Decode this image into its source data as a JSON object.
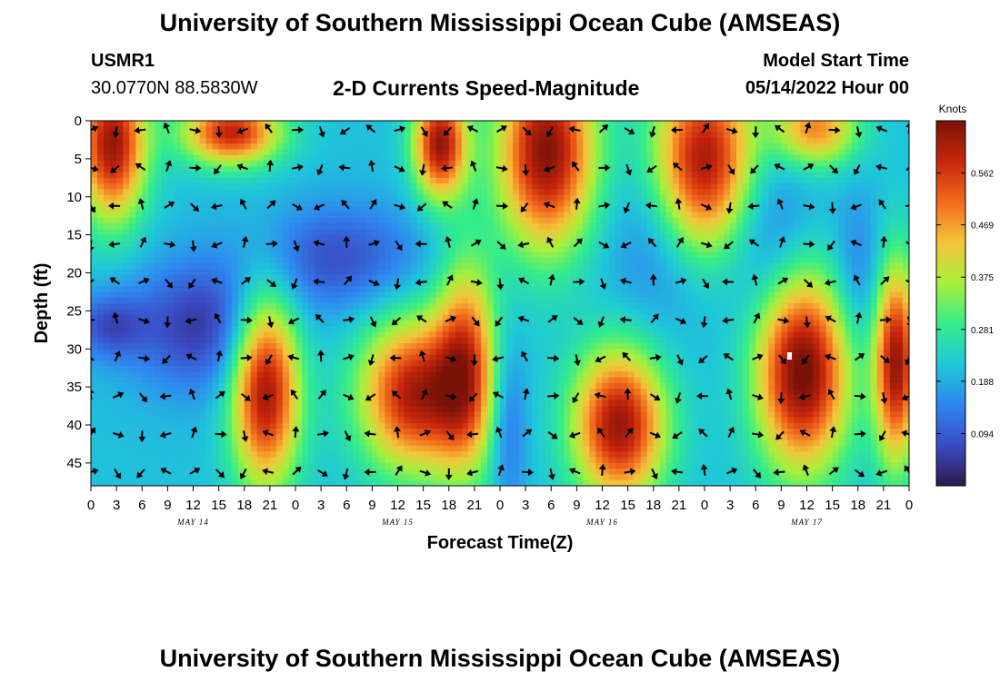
{
  "header": {
    "title": "University of Southern Mississippi Ocean Cube (AMSEAS)",
    "station": "USMR1",
    "coordinates": "30.0770N  88.5830W",
    "subtitle": "2-D Currents Speed-Magnitude",
    "model_start_label": "Model Start Time",
    "model_start_value": "05/14/2022 Hour 00"
  },
  "footer": {
    "title": "University of Southern Mississippi Ocean Cube (AMSEAS)"
  },
  "colors": {
    "colormap": [
      "#2b1b4d",
      "#3b4bc4",
      "#2f86f0",
      "#1fc8d8",
      "#35ec8a",
      "#a8f03c",
      "#f4c43a",
      "#f26a1c",
      "#c6260c",
      "#7a1208"
    ]
  },
  "chart_data": {
    "type": "heatmap",
    "xlabel": "Forecast Time(Z)",
    "ylabel": "Depth (ft)",
    "xlim": [
      0,
      96
    ],
    "ylim": [
      0,
      48
    ],
    "xtick_labels": [
      "0",
      "3",
      "6",
      "9",
      "12",
      "15",
      "18",
      "21",
      "0",
      "3",
      "6",
      "9",
      "12",
      "15",
      "18",
      "21",
      "0",
      "3",
      "6",
      "9",
      "12",
      "15",
      "18",
      "21",
      "0",
      "3",
      "6",
      "9",
      "12",
      "15",
      "18",
      "21",
      "0"
    ],
    "ytick_values": [
      0,
      5,
      10,
      15,
      20,
      25,
      30,
      35,
      40,
      45
    ],
    "ytick_labels": [
      "0",
      "5",
      "10",
      "15",
      "20",
      "25",
      "30",
      "35",
      "40",
      "45"
    ],
    "day_labels": [
      {
        "hour": 12,
        "text": "MAY 14"
      },
      {
        "hour": 36,
        "text": "MAY 15"
      },
      {
        "hour": 60,
        "text": "MAY 16"
      },
      {
        "hour": 84,
        "text": "MAY 17"
      }
    ],
    "colorbar": {
      "unit": "Knots",
      "min": 0,
      "max": 0.656,
      "tick_values": [
        0.094,
        0.188,
        0.281,
        0.375,
        0.469,
        0.562
      ],
      "tick_labels": [
        "0.094",
        "0.188",
        "0.281",
        "0.375",
        "0.469",
        "0.562"
      ]
    },
    "speed_field": {
      "base_knots": 0.21,
      "blobs_knots": [
        {
          "hour": 2.5,
          "depth": 3,
          "sh": 2.8,
          "sd": 7,
          "amp": 0.42
        },
        {
          "hour": 16.5,
          "depth": 1.5,
          "sh": 4,
          "sd": 3,
          "amp": 0.38
        },
        {
          "hour": 20.5,
          "depth": 35,
          "sh": 2.8,
          "sd": 9,
          "amp": 0.43
        },
        {
          "hour": 41,
          "depth": 3,
          "sh": 2.2,
          "sd": 5,
          "amp": 0.42
        },
        {
          "hour": 38,
          "depth": 36,
          "sh": 4.5,
          "sd": 7,
          "amp": 0.4
        },
        {
          "hour": 44,
          "depth": 32,
          "sh": 2.5,
          "sd": 10,
          "amp": 0.3
        },
        {
          "hour": 53.5,
          "depth": 4,
          "sh": 4,
          "sd": 9,
          "amp": 0.44
        },
        {
          "hour": 62,
          "depth": 40,
          "sh": 3.8,
          "sd": 7,
          "amp": 0.42
        },
        {
          "hour": 72,
          "depth": 6,
          "sh": 4.2,
          "sd": 9,
          "amp": 0.44
        },
        {
          "hour": 83.5,
          "depth": 33,
          "sh": 3.8,
          "sd": 9,
          "amp": 0.46
        },
        {
          "hour": 85,
          "depth": 1,
          "sh": 3.5,
          "sd": 3.5,
          "amp": 0.28
        },
        {
          "hour": 94.5,
          "depth": 32,
          "sh": 1.8,
          "sd": 9,
          "amp": 0.42
        },
        {
          "hour": 13,
          "depth": 27,
          "sh": 6,
          "sd": 6,
          "amp": -0.16
        },
        {
          "hour": 2,
          "depth": 27,
          "sh": 3,
          "sd": 3,
          "amp": -0.12
        },
        {
          "hour": 29,
          "depth": 18,
          "sh": 7,
          "sd": 5,
          "amp": -0.13
        },
        {
          "hour": 68,
          "depth": 16,
          "sh": 5,
          "sd": 8,
          "amp": -0.1
        },
        {
          "hour": 79,
          "depth": 14,
          "sh": 4,
          "sd": 8,
          "amp": -0.1
        },
        {
          "hour": 49,
          "depth": 40,
          "sh": 1.5,
          "sd": 8,
          "amp": -0.1
        },
        {
          "hour": 90,
          "depth": 20,
          "sh": 2,
          "sd": 7,
          "amp": -0.08
        }
      ]
    },
    "vector_grid": {
      "hours_start": 0,
      "hours_step": 3,
      "hours_count": 33,
      "depths": [
        0,
        5,
        10,
        15,
        20,
        25,
        30,
        35,
        40,
        45
      ],
      "rotation_hours": 12.4,
      "direction_depth_shift_deg": 36,
      "description": "current direction vectors (rotating tidal pattern)"
    }
  }
}
